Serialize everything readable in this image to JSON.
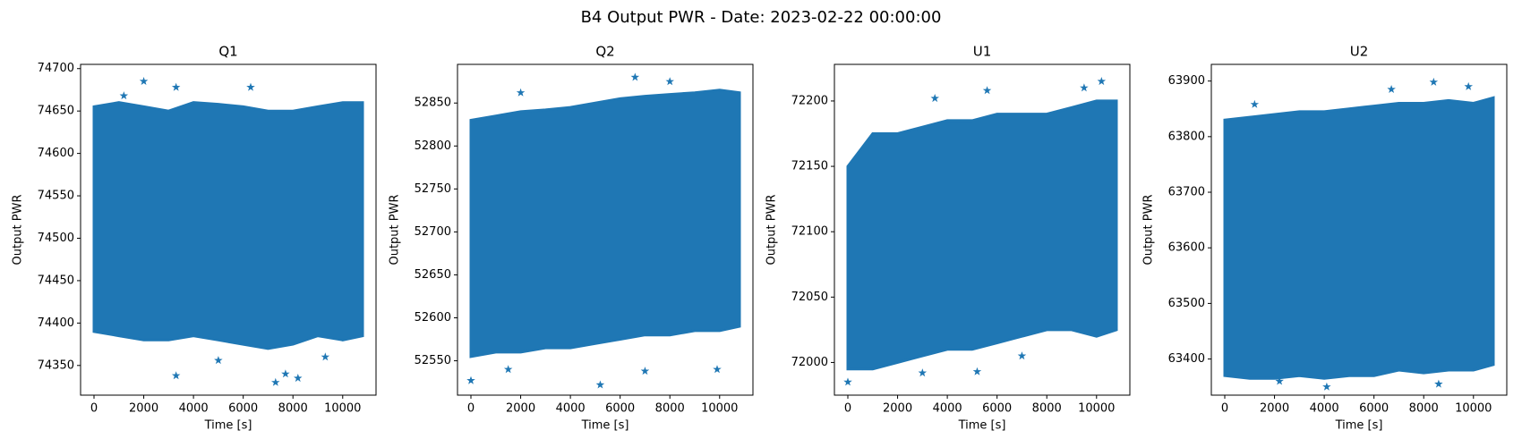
{
  "title": "B4 Output PWR - Date: 2023-02-22 00:00:00",
  "chart_data": [
    {
      "type": "scatter",
      "title": "Q1",
      "xlabel": "Time [s]",
      "ylabel": "Output PWR",
      "color": "#1f77b4",
      "marker": "star",
      "xlim": [
        -540,
        11340
      ],
      "xticks": [
        0,
        2000,
        4000,
        6000,
        8000,
        10000
      ],
      "ylim": [
        74315,
        74705
      ],
      "yticks": [
        74350,
        74400,
        74450,
        74500,
        74550,
        74600,
        74650,
        74700
      ],
      "envelope": {
        "x": [
          0,
          1000,
          2000,
          3000,
          4000,
          5000,
          6000,
          7000,
          8000,
          9000,
          10000,
          10800
        ],
        "upper": [
          74655,
          74660,
          74655,
          74650,
          74660,
          74658,
          74655,
          74650,
          74650,
          74655,
          74660,
          74660
        ],
        "lower": [
          74390,
          74385,
          74380,
          74380,
          74385,
          74380,
          74375,
          74370,
          74375,
          74385,
          74380,
          74385
        ]
      },
      "outliers": {
        "x": [
          2000,
          1200,
          3300,
          6300,
          3300,
          7300,
          7700,
          8200,
          5000,
          9300
        ],
        "y": [
          74685,
          74668,
          74678,
          74678,
          74338,
          74330,
          74340,
          74335,
          74356,
          74360
        ]
      }
    },
    {
      "type": "scatter",
      "title": "Q2",
      "xlabel": "Time [s]",
      "ylabel": "Output PWR",
      "color": "#1f77b4",
      "marker": "star",
      "xlim": [
        -540,
        11340
      ],
      "xticks": [
        0,
        2000,
        4000,
        6000,
        8000,
        10000
      ],
      "ylim": [
        52510,
        52895
      ],
      "yticks": [
        52550,
        52600,
        52650,
        52700,
        52750,
        52800,
        52850
      ],
      "envelope": {
        "x": [
          0,
          1000,
          2000,
          3000,
          4000,
          5000,
          6000,
          7000,
          8000,
          9000,
          10000,
          10800
        ],
        "upper": [
          52830,
          52835,
          52840,
          52842,
          52845,
          52850,
          52855,
          52858,
          52860,
          52862,
          52865,
          52862
        ],
        "lower": [
          52555,
          52560,
          52560,
          52565,
          52565,
          52570,
          52575,
          52580,
          52580,
          52585,
          52585,
          52590
        ]
      },
      "outliers": {
        "x": [
          6600,
          8000,
          2000,
          0,
          5200,
          7000,
          9900,
          1500
        ],
        "y": [
          52880,
          52875,
          52862,
          52527,
          52522,
          52538,
          52540,
          52540
        ]
      }
    },
    {
      "type": "scatter",
      "title": "U1",
      "xlabel": "Time [s]",
      "ylabel": "Output PWR",
      "color": "#1f77b4",
      "marker": "star",
      "xlim": [
        -540,
        11340
      ],
      "xticks": [
        0,
        2000,
        4000,
        6000,
        8000,
        10000
      ],
      "ylim": [
        71975,
        72228
      ],
      "yticks": [
        72000,
        72050,
        72100,
        72150,
        72200
      ],
      "envelope": {
        "x": [
          0,
          1000,
          2000,
          3000,
          4000,
          5000,
          6000,
          7000,
          8000,
          9000,
          10000,
          10800
        ],
        "upper": [
          72150,
          72175,
          72175,
          72180,
          72185,
          72185,
          72190,
          72190,
          72190,
          72195,
          72200,
          72200
        ],
        "lower": [
          71995,
          71995,
          72000,
          72005,
          72010,
          72010,
          72015,
          72020,
          72025,
          72025,
          72020,
          72025
        ]
      },
      "outliers": {
        "x": [
          0,
          5600,
          10200,
          3500,
          9500,
          3000,
          5200,
          7000
        ],
        "y": [
          71985,
          72208,
          72215,
          72202,
          72210,
          71992,
          71993,
          72005
        ]
      }
    },
    {
      "type": "scatter",
      "title": "U2",
      "xlabel": "Time [s]",
      "ylabel": "Output PWR",
      "color": "#1f77b4",
      "marker": "star",
      "xlim": [
        -540,
        11340
      ],
      "xticks": [
        0,
        2000,
        4000,
        6000,
        8000,
        10000
      ],
      "ylim": [
        63335,
        63930
      ],
      "yticks": [
        63400,
        63500,
        63600,
        63700,
        63800,
        63900
      ],
      "envelope": {
        "x": [
          0,
          1000,
          2000,
          3000,
          4000,
          5000,
          6000,
          7000,
          8000,
          9000,
          10000,
          10800
        ],
        "upper": [
          63830,
          63835,
          63840,
          63845,
          63845,
          63850,
          63855,
          63860,
          63860,
          63865,
          63860,
          63870
        ],
        "lower": [
          63370,
          63365,
          63365,
          63370,
          63365,
          63370,
          63370,
          63380,
          63375,
          63380,
          63380,
          63390
        ]
      },
      "outliers": {
        "x": [
          8400,
          9800,
          6700,
          4100,
          8600,
          2200,
          1200
        ],
        "y": [
          63898,
          63890,
          63885,
          63350,
          63355,
          63360,
          63858
        ]
      }
    }
  ]
}
